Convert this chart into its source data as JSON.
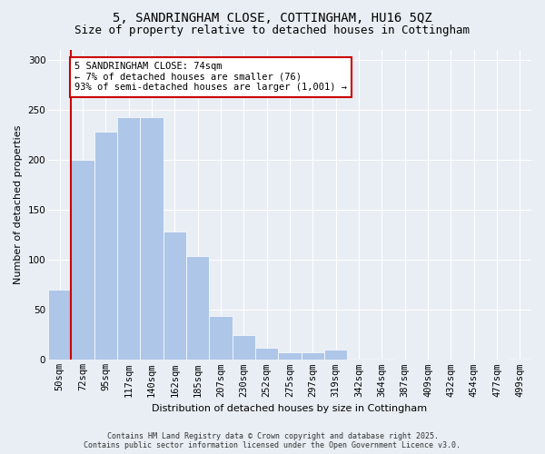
{
  "title1": "5, SANDRINGHAM CLOSE, COTTINGHAM, HU16 5QZ",
  "title2": "Size of property relative to detached houses in Cottingham",
  "xlabel": "Distribution of detached houses by size in Cottingham",
  "ylabel": "Number of detached properties",
  "categories": [
    "50sqm",
    "72sqm",
    "95sqm",
    "117sqm",
    "140sqm",
    "162sqm",
    "185sqm",
    "207sqm",
    "230sqm",
    "252sqm",
    "275sqm",
    "297sqm",
    "319sqm",
    "342sqm",
    "364sqm",
    "387sqm",
    "409sqm",
    "432sqm",
    "454sqm",
    "477sqm",
    "499sqm"
  ],
  "values": [
    70,
    200,
    228,
    243,
    243,
    128,
    104,
    44,
    25,
    12,
    8,
    8,
    10,
    1,
    1,
    0,
    0,
    0,
    0,
    0,
    1
  ],
  "bar_color": "#aec6e8",
  "bar_edgecolor": "#aec6e8",
  "vline_color": "#cc0000",
  "annotation_text": "5 SANDRINGHAM CLOSE: 74sqm\n← 7% of detached houses are smaller (76)\n93% of semi-detached houses are larger (1,001) →",
  "annotation_box_color": "#ffffff",
  "annotation_box_edgecolor": "#cc0000",
  "ylim": [
    0,
    310
  ],
  "yticks": [
    0,
    50,
    100,
    150,
    200,
    250,
    300
  ],
  "bg_color": "#e8eef4",
  "plot_bg_color": "#e8eef4",
  "footer1": "Contains HM Land Registry data © Crown copyright and database right 2025.",
  "footer2": "Contains public sector information licensed under the Open Government Licence v3.0.",
  "title_fontsize": 10,
  "subtitle_fontsize": 9,
  "axis_fontsize": 8,
  "tick_fontsize": 7.5,
  "footer_fontsize": 6
}
